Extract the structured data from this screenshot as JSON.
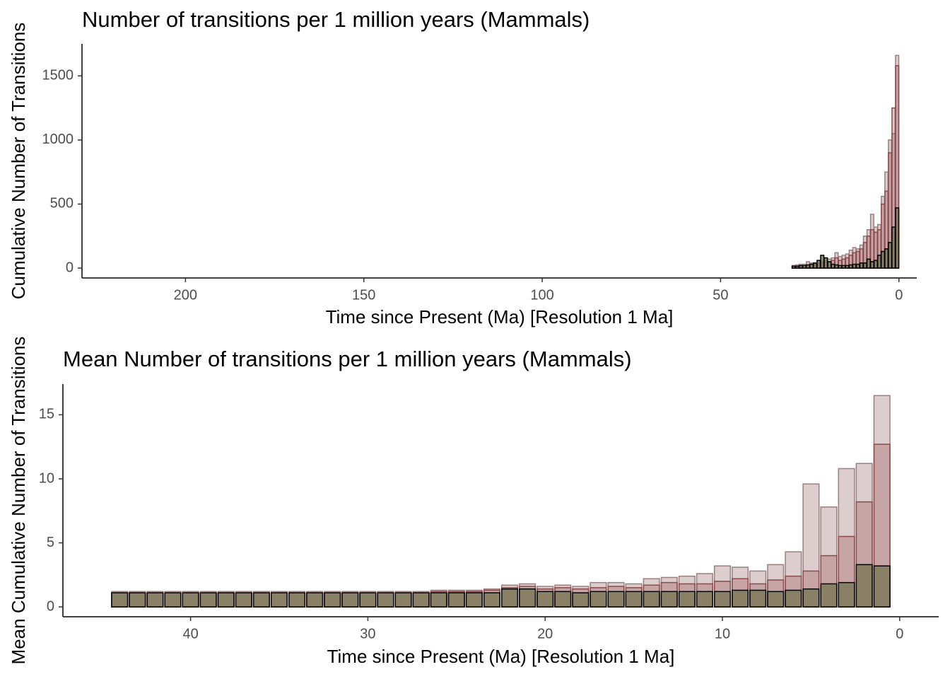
{
  "chart_data": [
    {
      "type": "bar",
      "title": "Number of transitions per 1 million years (Mammals)",
      "x_label": "Time since Present (Ma) [Resolution 1 Ma]",
      "y_label": "Cumulative Number of Transitions",
      "x": [
        0.5,
        1.5,
        2.5,
        3.5,
        4.5,
        5.5,
        6.5,
        7.5,
        8.5,
        9.5,
        10.5,
        11.5,
        12.5,
        13.5,
        14.5,
        15.5,
        16.5,
        17.5,
        18.5,
        19.5,
        20.5,
        21.5,
        22.5,
        23.5,
        24.5,
        25.5,
        26.5,
        27.5,
        28.5,
        29.5
      ],
      "series": [
        {
          "color": "#b99c9e",
          "edgecolor": "#9b7f80",
          "opacity": 0.5,
          "values": [
            1660,
            1050,
            1000,
            750,
            560,
            340,
            320,
            420,
            300,
            250,
            180,
            150,
            160,
            140,
            110,
            100,
            90,
            120,
            80,
            70,
            60,
            50,
            60,
            40,
            40,
            50,
            30,
            30,
            25,
            20
          ]
        },
        {
          "color": "#a0585a",
          "edgecolor": "#8a4a4c",
          "opacity": 0.35,
          "values": [
            1580,
            1250,
            900,
            600,
            500,
            300,
            280,
            300,
            250,
            200,
            150,
            130,
            120,
            100,
            80,
            70,
            60,
            80,
            60,
            50,
            45,
            40,
            35,
            30,
            30,
            25,
            20,
            20,
            15,
            15
          ]
        },
        {
          "color": "#7f7a5a",
          "edgecolor": "#000000",
          "opacity": 0.85,
          "values": [
            470,
            320,
            200,
            150,
            130,
            100,
            60,
            50,
            70,
            40,
            40,
            30,
            30,
            25,
            20,
            20,
            20,
            25,
            30,
            50,
            80,
            100,
            60,
            40,
            30,
            25,
            20,
            20,
            15,
            15
          ]
        }
      ],
      "xlim": [
        229,
        -5
      ],
      "xticks": [
        200,
        150,
        100,
        50,
        0
      ],
      "ylim": [
        -77,
        1750
      ],
      "yticks": [
        0,
        500,
        1000,
        1500
      ]
    },
    {
      "type": "bar",
      "title": "Mean Number of transitions per 1 million years (Mammals)",
      "x_label": "Time since Present (Ma) [Resolution 1 Ma]",
      "y_label": "Mean Cumulative Number of Transitions",
      "x": [
        1,
        2,
        3,
        4,
        5,
        6,
        7,
        8,
        9,
        10,
        11,
        12,
        13,
        14,
        15,
        16,
        17,
        18,
        19,
        20,
        21,
        22,
        23,
        24,
        25,
        26,
        27,
        28,
        29,
        30,
        31,
        32,
        33,
        34,
        35,
        36,
        37,
        38,
        39,
        40,
        41,
        42,
        43,
        44
      ],
      "series": [
        {
          "color": "#b99c9e",
          "edgecolor": "#9b7f80",
          "opacity": 0.5,
          "values": [
            16.5,
            11.2,
            10.8,
            7.8,
            9.6,
            4.3,
            3.3,
            2.8,
            3.1,
            3.2,
            2.6,
            2.4,
            2.3,
            2.2,
            1.8,
            1.9,
            1.9,
            1.6,
            1.7,
            1.6,
            1.8,
            1.7,
            1.4,
            1.3,
            1.3,
            1.3,
            1.2,
            1.2,
            1.2,
            1.2,
            1.2,
            1.2,
            1.2,
            1.2,
            1.2,
            1.2,
            1.2,
            1.2,
            1.2,
            1.2,
            1.2,
            1.2,
            1.2,
            1.2
          ]
        },
        {
          "color": "#a0585a",
          "edgecolor": "#8a4a4c",
          "opacity": 0.35,
          "values": [
            12.7,
            8.2,
            5.5,
            4.0,
            2.8,
            2.4,
            2.1,
            1.8,
            2.2,
            2.0,
            1.8,
            1.8,
            1.9,
            1.7,
            1.5,
            1.6,
            1.5,
            1.4,
            1.5,
            1.4,
            1.6,
            1.5,
            1.3,
            1.2,
            1.2,
            1.2,
            1.1,
            1.1,
            1.1,
            1.1,
            1.1,
            1.1,
            1.1,
            1.1,
            1.1,
            1.1,
            1.1,
            1.1,
            1.1,
            1.1,
            1.1,
            1.1,
            1.1,
            1.1
          ]
        },
        {
          "color": "#7f7a5a",
          "edgecolor": "#000000",
          "opacity": 0.85,
          "values": [
            3.2,
            3.3,
            1.9,
            1.8,
            1.4,
            1.3,
            1.2,
            1.3,
            1.3,
            1.2,
            1.2,
            1.2,
            1.2,
            1.2,
            1.2,
            1.2,
            1.2,
            1.1,
            1.2,
            1.2,
            1.4,
            1.4,
            1.1,
            1.1,
            1.1,
            1.1,
            1.1,
            1.1,
            1.1,
            1.1,
            1.1,
            1.1,
            1.1,
            1.1,
            1.1,
            1.1,
            1.1,
            1.1,
            1.1,
            1.1,
            1.1,
            1.1,
            1.1,
            1.1
          ]
        }
      ],
      "xlim": [
        47.2,
        -2.2
      ],
      "xticks": [
        40,
        30,
        20,
        10,
        0
      ],
      "ylim": [
        -0.77,
        17.4
      ],
      "yticks": [
        0,
        5,
        10,
        15
      ]
    }
  ]
}
